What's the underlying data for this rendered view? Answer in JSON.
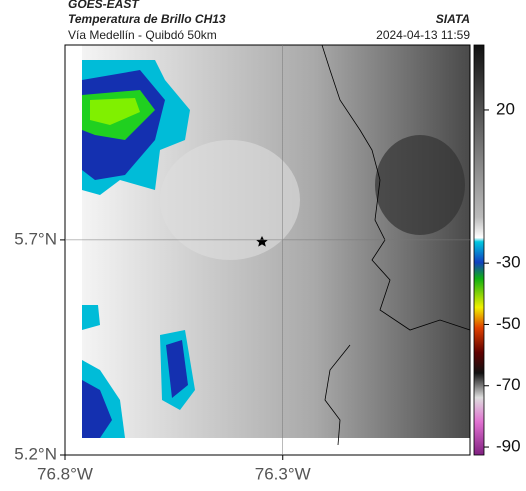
{
  "header": {
    "satellite": "GOES-EAST",
    "title": "Temperatura de Brillo CH13",
    "source": "SIATA",
    "subtitle": "Vía Medellín - Quibdó 50km",
    "timestamp": "2024-04-13 11:59"
  },
  "map": {
    "xlim": [
      -76.8,
      -75.87
    ],
    "ylim": [
      5.2,
      6.153
    ],
    "xticks": [
      {
        "value": -76.8,
        "label": "76.8°W"
      },
      {
        "value": -76.3,
        "label": "76.3°W"
      }
    ],
    "yticks": [
      {
        "value": 5.2,
        "label": "5.2°N"
      },
      {
        "value": 5.7,
        "label": "5.7°N"
      }
    ],
    "grid": true
  },
  "colorbar": {
    "lim": [
      -92.6,
      41.2
    ],
    "ticks": [
      20,
      -30,
      -50,
      -70,
      -90
    ]
  }
}
